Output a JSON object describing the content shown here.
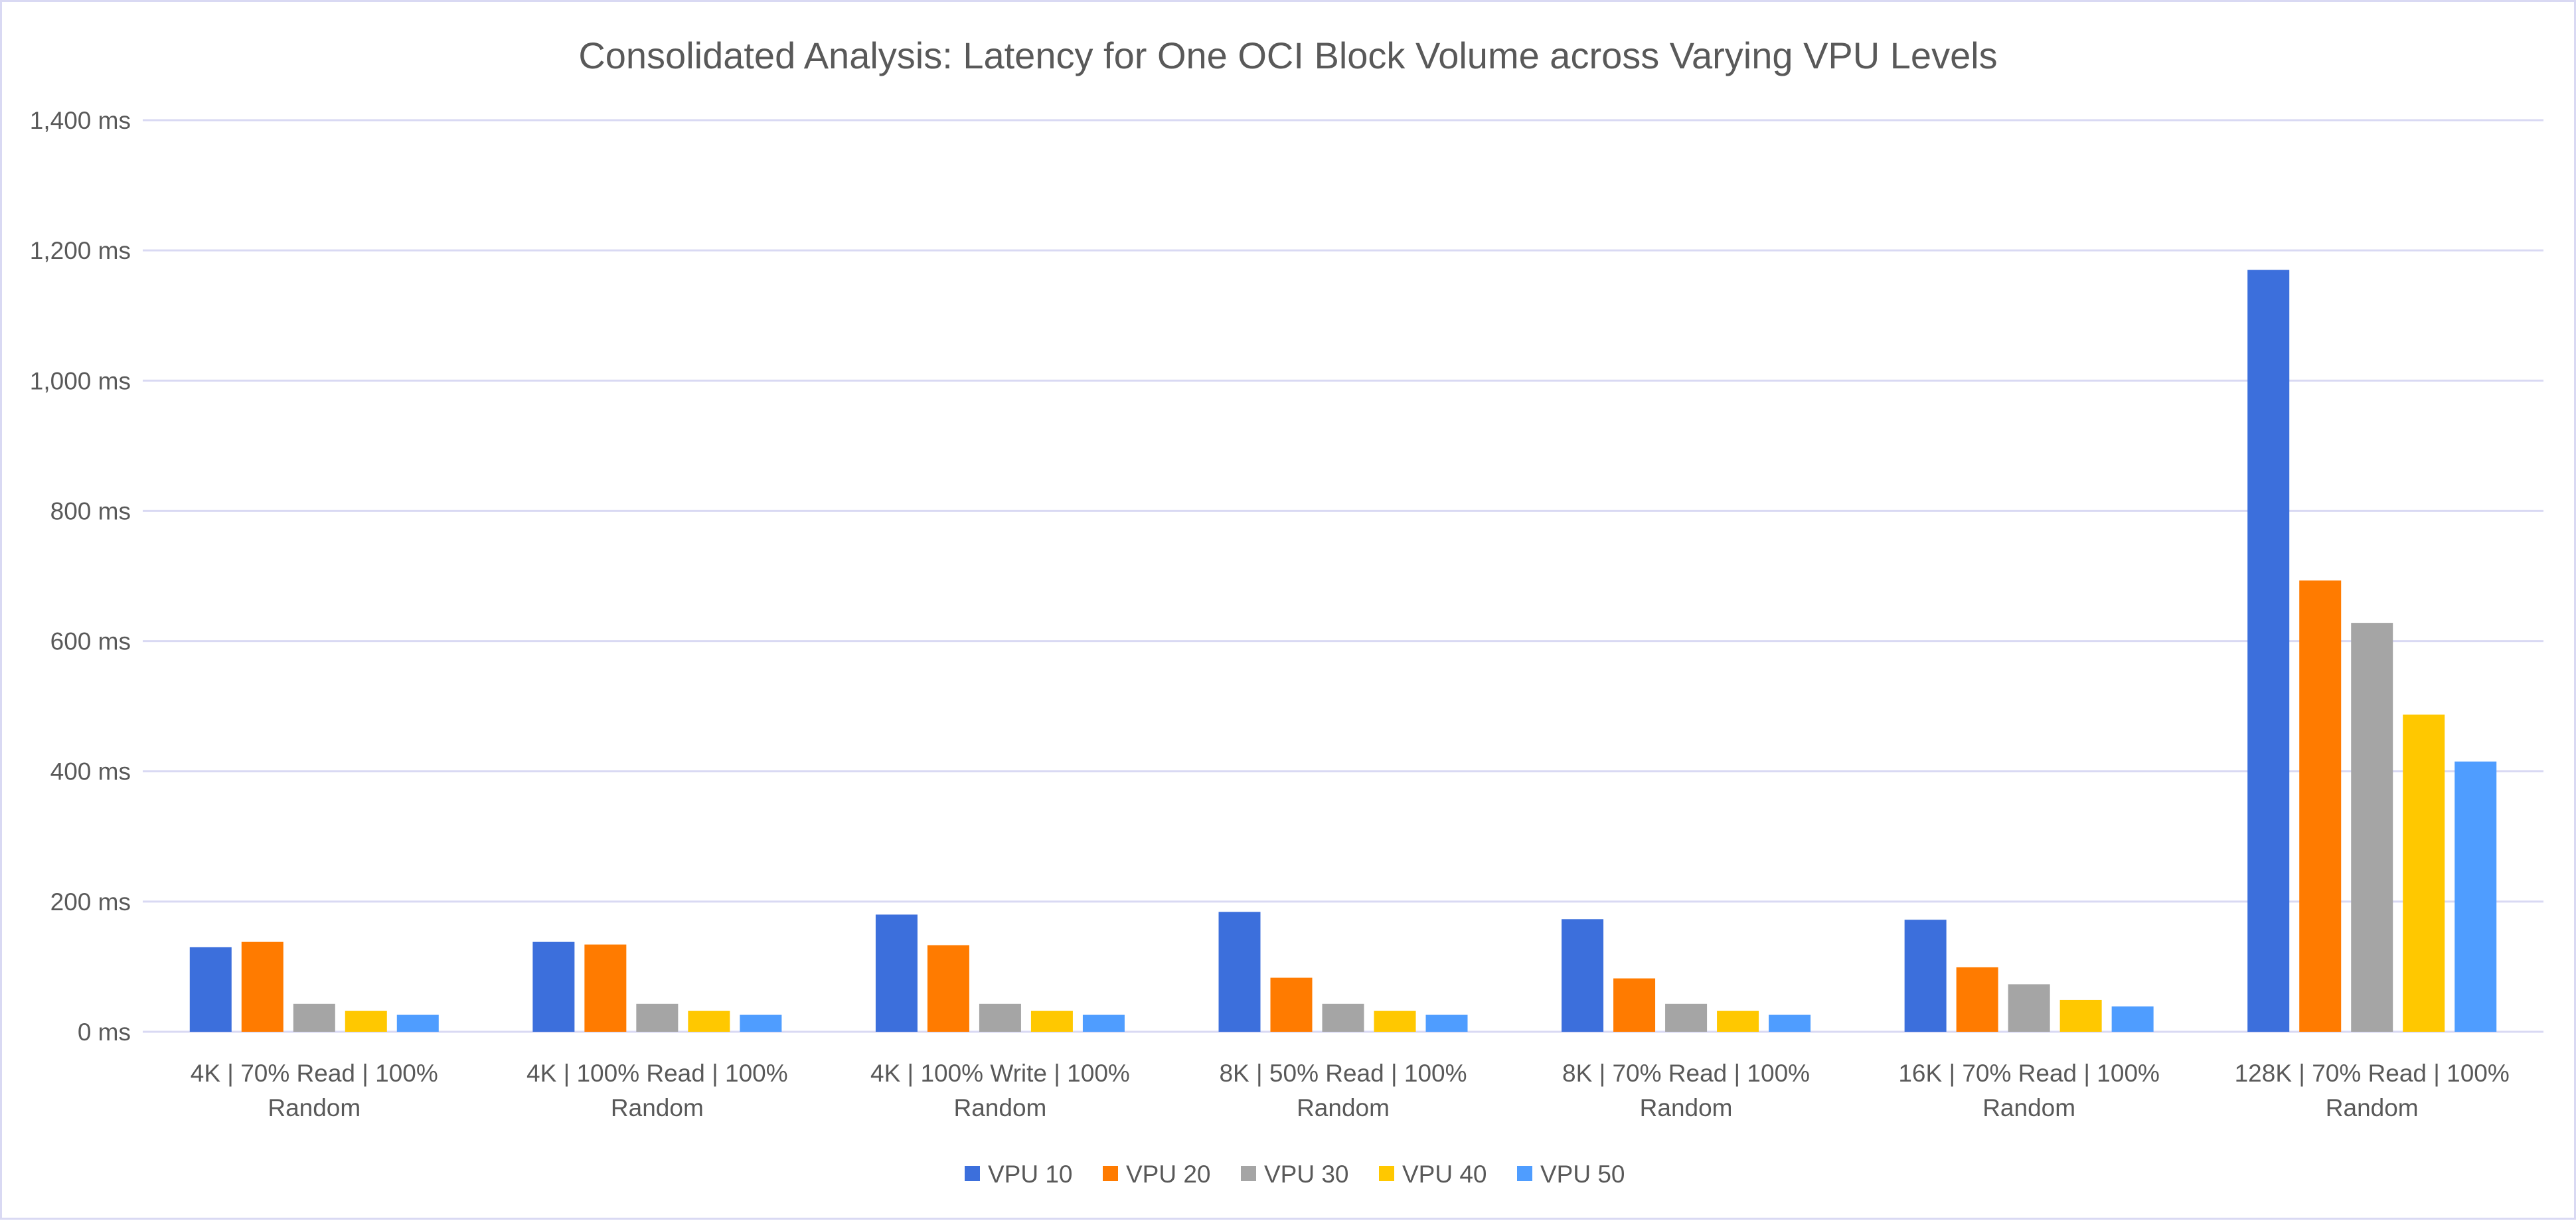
{
  "chart_data": {
    "type": "bar",
    "title": "Consolidated Analysis: Latency for One OCI Block Volume across Varying VPU Levels",
    "xlabel": "",
    "ylabel": "",
    "ylim": [
      0,
      1400
    ],
    "yticks": [
      0,
      200,
      400,
      600,
      800,
      1000,
      1200,
      1400
    ],
    "ytick_labels": [
      "0 ms",
      "200 ms",
      "400 ms",
      "600 ms",
      "800 ms",
      "1,000 ms",
      "1,200 ms",
      "1,400 ms"
    ],
    "grid": true,
    "legend_position": "bottom",
    "categories": [
      [
        "4K | 70% Read | 100%",
        "Random"
      ],
      [
        "4K | 100% Read | 100%",
        "Random"
      ],
      [
        "4K | 100% Write | 100%",
        "Random"
      ],
      [
        "8K | 50% Read | 100%",
        "Random"
      ],
      [
        "8K | 70% Read | 100%",
        "Random"
      ],
      [
        "16K | 70% Read | 100%",
        "Random"
      ],
      [
        "128K | 70% Read | 100%",
        "Random"
      ]
    ],
    "series": [
      {
        "name": "VPU 10",
        "color": "#3c6fdc",
        "values": [
          130,
          138,
          180,
          184,
          173,
          172,
          1170
        ]
      },
      {
        "name": "VPU 20",
        "color": "#ff7b00",
        "values": [
          138,
          134,
          133,
          83,
          82,
          99,
          693
        ]
      },
      {
        "name": "VPU 30",
        "color": "#a5a5a5",
        "values": [
          43,
          43,
          43,
          43,
          43,
          73,
          628
        ]
      },
      {
        "name": "VPU 40",
        "color": "#ffc800",
        "values": [
          32,
          32,
          32,
          32,
          32,
          49,
          487
        ]
      },
      {
        "name": "VPU 50",
        "color": "#4f9dff",
        "values": [
          26,
          26,
          26,
          26,
          26,
          39,
          415
        ]
      }
    ]
  }
}
